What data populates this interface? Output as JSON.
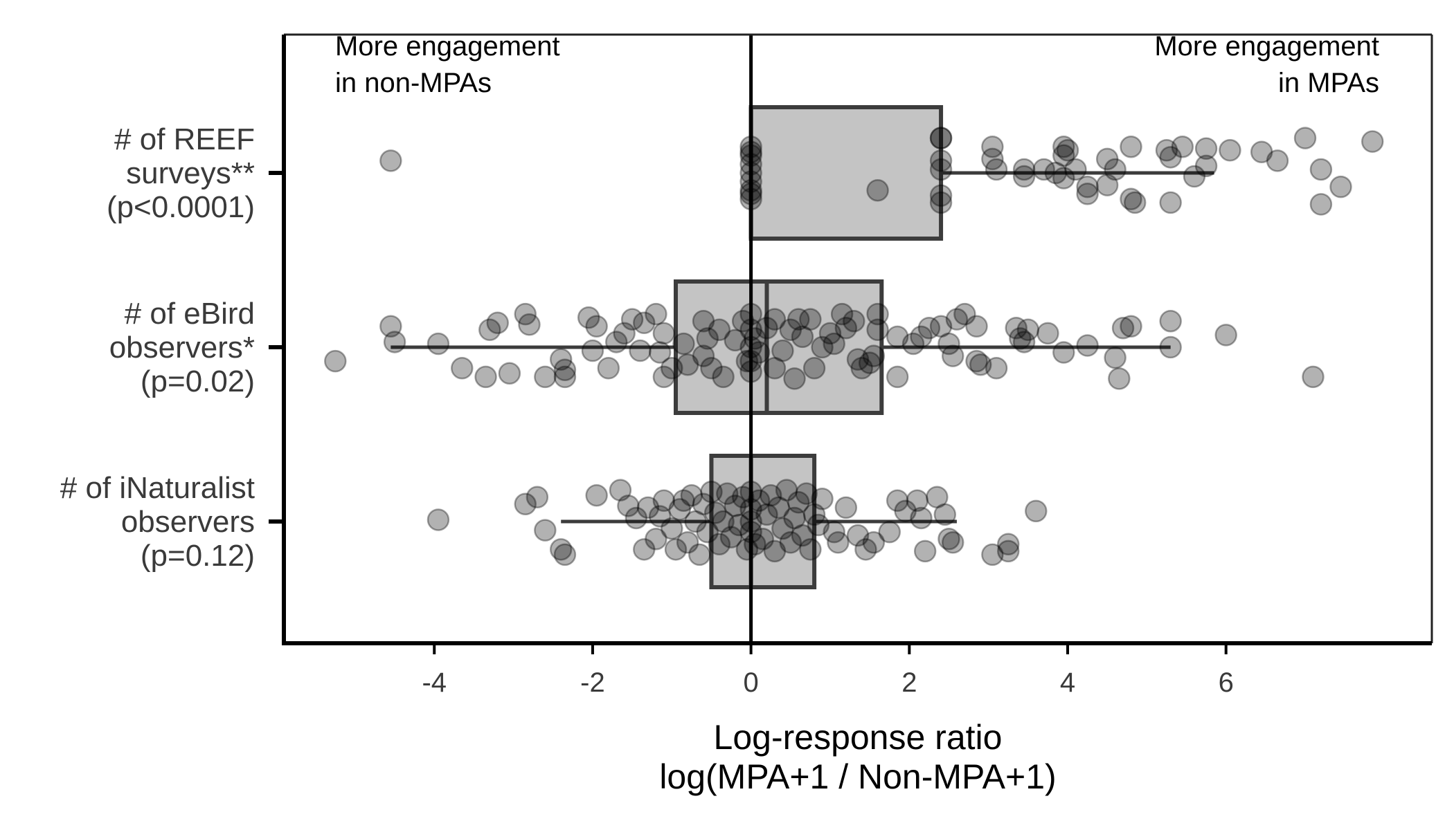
{
  "chart_data": {
    "type": "boxplot",
    "orientation": "horizontal",
    "title": "",
    "xlabel": [
      "Log-response ratio",
      "log(MPA+1 / Non-MPA+1)"
    ],
    "ylabel": "",
    "xlim": [
      -5.9,
      8.6
    ],
    "xticks": [
      -4,
      -2,
      0,
      2,
      4,
      6
    ],
    "xtick_labels": [
      "-4",
      "-2",
      "0",
      "2",
      "4",
      "6"
    ],
    "grid": false,
    "legend": "none",
    "reference_line": 0,
    "annotations": {
      "left": [
        "More engagement",
        "in non-MPAs"
      ],
      "right": [
        "More engagement",
        "in MPAs"
      ]
    },
    "colors": {
      "box_fill": "#c4c4c4",
      "box_stroke": "#3c3c3c",
      "point": "#000000"
    },
    "categories": [
      {
        "label": [
          "# of REEF",
          "surveys**",
          "(p<0.0001)"
        ],
        "box": {
          "whisker_low": 0.0,
          "q1": 0.0,
          "median": 0.0,
          "q3": 2.4,
          "whisker_high": 5.85
        },
        "points": [
          [
            -4.55,
            0.07
          ],
          [
            0.0,
            0.15
          ],
          [
            0.0,
            0.1
          ],
          [
            0.0,
            0.05
          ],
          [
            0.0,
            0.0
          ],
          [
            0.0,
            -0.05
          ],
          [
            0.0,
            -0.1
          ],
          [
            0.0,
            -0.15
          ],
          [
            0.0,
            0.12
          ],
          [
            0.0,
            -0.12
          ],
          [
            1.6,
            -0.1
          ],
          [
            2.4,
            0.2
          ],
          [
            2.4,
            0.2
          ],
          [
            2.4,
            0.07
          ],
          [
            2.4,
            0.02
          ],
          [
            2.4,
            -0.13
          ],
          [
            2.4,
            -0.17
          ],
          [
            3.05,
            0.15
          ],
          [
            3.05,
            0.08
          ],
          [
            3.1,
            0.02
          ],
          [
            3.45,
            0.02
          ],
          [
            3.45,
            -0.02
          ],
          [
            3.7,
            0.02
          ],
          [
            3.85,
            0.0
          ],
          [
            3.95,
            0.15
          ],
          [
            3.95,
            0.1
          ],
          [
            4.0,
            0.13
          ],
          [
            3.95,
            -0.03
          ],
          [
            4.1,
            0.02
          ],
          [
            4.25,
            -0.08
          ],
          [
            4.25,
            -0.12
          ],
          [
            4.5,
            0.08
          ],
          [
            4.5,
            -0.07
          ],
          [
            4.6,
            0.02
          ],
          [
            4.8,
            0.15
          ],
          [
            4.8,
            -0.15
          ],
          [
            4.85,
            -0.17
          ],
          [
            5.25,
            0.13
          ],
          [
            5.3,
            0.09
          ],
          [
            5.45,
            0.15
          ],
          [
            5.6,
            -0.02
          ],
          [
            5.75,
            0.14
          ],
          [
            5.75,
            0.04
          ],
          [
            6.05,
            0.13
          ],
          [
            6.45,
            0.12
          ],
          [
            6.65,
            0.07
          ],
          [
            7.0,
            0.2
          ],
          [
            7.2,
            0.02
          ],
          [
            7.2,
            -0.18
          ],
          [
            7.45,
            -0.08
          ],
          [
            7.85,
            0.18
          ],
          [
            5.3,
            -0.17
          ]
        ]
      },
      {
        "label": [
          "# of eBird",
          "observers*",
          "(p=0.02)"
        ],
        "box": {
          "whisker_low": -4.55,
          "q1": -0.95,
          "median": 0.2,
          "q3": 1.65,
          "whisker_high": 5.3
        },
        "points": [
          [
            -5.25,
            -0.08
          ],
          [
            -4.55,
            0.12
          ],
          [
            -4.5,
            0.03
          ],
          [
            -3.95,
            0.02
          ],
          [
            -3.65,
            -0.12
          ],
          [
            -3.35,
            -0.17
          ],
          [
            -3.3,
            0.1
          ],
          [
            -3.2,
            0.14
          ],
          [
            -3.05,
            -0.15
          ],
          [
            -2.85,
            0.19
          ],
          [
            -2.8,
            0.13
          ],
          [
            -2.6,
            -0.17
          ],
          [
            -2.4,
            -0.07
          ],
          [
            -2.35,
            -0.13
          ],
          [
            -2.35,
            -0.17
          ],
          [
            -2.05,
            0.17
          ],
          [
            -2.0,
            -0.02
          ],
          [
            -1.95,
            0.12
          ],
          [
            -1.8,
            -0.12
          ],
          [
            -1.7,
            0.03
          ],
          [
            -1.6,
            0.08
          ],
          [
            -1.5,
            0.16
          ],
          [
            -1.4,
            -0.02
          ],
          [
            -1.35,
            0.14
          ],
          [
            -1.2,
            0.19
          ],
          [
            -1.15,
            -0.03
          ],
          [
            -1.1,
            -0.17
          ],
          [
            -1.1,
            0.08
          ],
          [
            -1.0,
            -0.12
          ],
          [
            -0.85,
            0.02
          ],
          [
            -0.8,
            -0.1
          ],
          [
            -0.6,
            0.15
          ],
          [
            -0.6,
            -0.05
          ],
          [
            -0.55,
            0.05
          ],
          [
            -0.5,
            -0.12
          ],
          [
            -0.4,
            0.1
          ],
          [
            -0.35,
            -0.17
          ],
          [
            -0.2,
            0.04
          ],
          [
            -0.1,
            0.15
          ],
          [
            -0.05,
            -0.08
          ],
          [
            0.0,
            0.19
          ],
          [
            0.0,
            0.1
          ],
          [
            0.0,
            0.0
          ],
          [
            0.0,
            -0.08
          ],
          [
            0.0,
            -0.14
          ],
          [
            0.05,
            0.05
          ],
          [
            0.1,
            -0.03
          ],
          [
            0.2,
            0.11
          ],
          [
            0.3,
            -0.12
          ],
          [
            0.3,
            0.16
          ],
          [
            0.4,
            -0.02
          ],
          [
            0.5,
            0.1
          ],
          [
            0.55,
            -0.18
          ],
          [
            0.6,
            0.16
          ],
          [
            0.65,
            0.06
          ],
          [
            0.75,
            0.16
          ],
          [
            0.8,
            -0.12
          ],
          [
            0.9,
            0.0
          ],
          [
            1.0,
            0.08
          ],
          [
            1.05,
            0.02
          ],
          [
            1.15,
            0.19
          ],
          [
            1.2,
            0.11
          ],
          [
            1.3,
            0.15
          ],
          [
            1.35,
            -0.07
          ],
          [
            1.4,
            -0.12
          ],
          [
            1.5,
            -0.09
          ],
          [
            1.55,
            -0.05
          ],
          [
            1.6,
            0.1
          ],
          [
            1.85,
            0.06
          ],
          [
            1.85,
            -0.17
          ],
          [
            2.05,
            0.02
          ],
          [
            2.15,
            0.06
          ],
          [
            2.25,
            0.11
          ],
          [
            2.4,
            0.12
          ],
          [
            2.5,
            0.02
          ],
          [
            2.55,
            -0.05
          ],
          [
            2.6,
            0.16
          ],
          [
            2.7,
            0.19
          ],
          [
            2.85,
            -0.08
          ],
          [
            2.9,
            -0.1
          ],
          [
            2.85,
            0.12
          ],
          [
            3.1,
            -0.12
          ],
          [
            3.35,
            0.11
          ],
          [
            3.4,
            0.05
          ],
          [
            3.5,
            0.1
          ],
          [
            3.45,
            0.03
          ],
          [
            3.75,
            0.08
          ],
          [
            3.95,
            -0.03
          ],
          [
            4.25,
            0.01
          ],
          [
            4.6,
            -0.06
          ],
          [
            4.65,
            -0.18
          ],
          [
            4.7,
            0.11
          ],
          [
            4.8,
            0.12
          ],
          [
            5.3,
            0.15
          ],
          [
            5.3,
            0.0
          ],
          [
            6.0,
            0.07
          ],
          [
            7.1,
            -0.17
          ],
          [
            1.6,
            0.19
          ]
        ]
      },
      {
        "label": [
          "# of iNaturalist",
          "observers",
          "(p=0.12)"
        ],
        "box": {
          "whisker_low": -2.4,
          "q1": -0.5,
          "median": 0.0,
          "q3": 0.8,
          "whisker_high": 2.6
        },
        "points": [
          [
            -3.95,
            0.01
          ],
          [
            -2.85,
            0.1
          ],
          [
            -2.7,
            0.14
          ],
          [
            -2.6,
            -0.05
          ],
          [
            -2.4,
            -0.16
          ],
          [
            -2.35,
            -0.19
          ],
          [
            -1.95,
            0.15
          ],
          [
            -1.65,
            0.18
          ],
          [
            -1.55,
            0.09
          ],
          [
            -1.45,
            0.02
          ],
          [
            -1.35,
            -0.16
          ],
          [
            -1.3,
            0.08
          ],
          [
            -1.2,
            -0.1
          ],
          [
            -1.15,
            0.03
          ],
          [
            -1.1,
            0.12
          ],
          [
            -1.0,
            -0.04
          ],
          [
            -0.95,
            -0.16
          ],
          [
            -0.9,
            0.07
          ],
          [
            -0.85,
            0.12
          ],
          [
            -0.8,
            -0.12
          ],
          [
            -0.75,
            0.15
          ],
          [
            -0.7,
            0.0
          ],
          [
            -0.65,
            -0.19
          ],
          [
            -0.6,
            0.1
          ],
          [
            -0.55,
            -0.06
          ],
          [
            -0.5,
            0.17
          ],
          [
            -0.45,
            0.05
          ],
          [
            -0.4,
            -0.13
          ],
          [
            -0.35,
            0.0
          ],
          [
            -0.3,
            0.16
          ],
          [
            -0.25,
            -0.09
          ],
          [
            -0.2,
            0.09
          ],
          [
            -0.15,
            -0.02
          ],
          [
            -0.1,
            0.14
          ],
          [
            -0.05,
            -0.16
          ],
          [
            0.0,
            0.17
          ],
          [
            0.0,
            0.07
          ],
          [
            0.0,
            0.0
          ],
          [
            0.0,
            -0.06
          ],
          [
            0.05,
            -0.13
          ],
          [
            0.1,
            0.12
          ],
          [
            0.15,
            -0.1
          ],
          [
            0.2,
            0.04
          ],
          [
            0.25,
            0.15
          ],
          [
            0.3,
            -0.17
          ],
          [
            0.35,
            0.08
          ],
          [
            0.4,
            -0.04
          ],
          [
            0.45,
            0.18
          ],
          [
            0.5,
            -0.12
          ],
          [
            0.55,
            0.02
          ],
          [
            0.6,
            0.11
          ],
          [
            0.65,
            -0.08
          ],
          [
            0.7,
            0.16
          ],
          [
            0.75,
            -0.16
          ],
          [
            0.8,
            0.04
          ],
          [
            0.85,
            -0.02
          ],
          [
            0.9,
            0.13
          ],
          [
            1.05,
            -0.06
          ],
          [
            1.1,
            -0.12
          ],
          [
            1.2,
            0.08
          ],
          [
            1.35,
            -0.08
          ],
          [
            1.45,
            -0.16
          ],
          [
            1.55,
            -0.12
          ],
          [
            1.75,
            -0.06
          ],
          [
            1.85,
            0.12
          ],
          [
            1.95,
            0.06
          ],
          [
            2.1,
            0.12
          ],
          [
            2.15,
            0.02
          ],
          [
            2.2,
            -0.17
          ],
          [
            2.35,
            0.14
          ],
          [
            2.45,
            0.04
          ],
          [
            2.5,
            -0.1
          ],
          [
            2.55,
            -0.12
          ],
          [
            3.05,
            -0.19
          ],
          [
            3.25,
            -0.17
          ],
          [
            3.25,
            -0.13
          ],
          [
            3.6,
            0.06
          ]
        ]
      }
    ]
  }
}
